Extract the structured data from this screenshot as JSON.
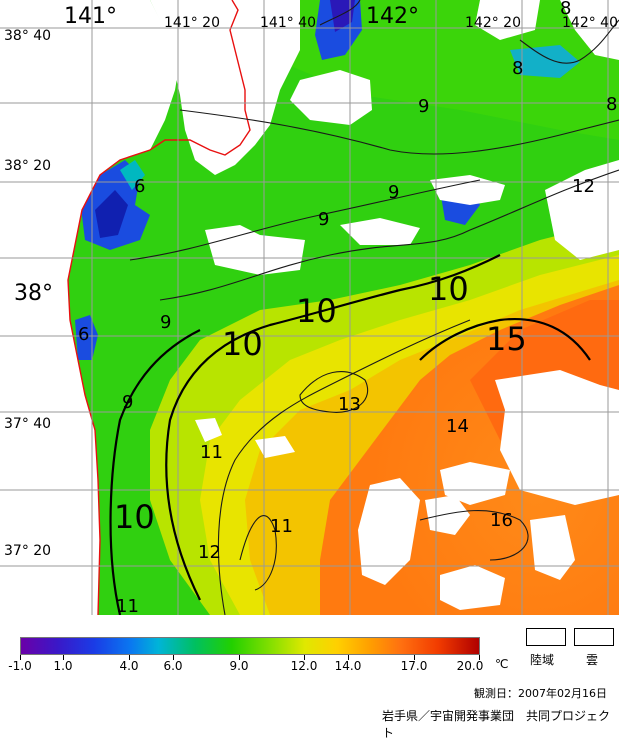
{
  "map": {
    "lon_labels": [
      {
        "text": "141°",
        "size": 22
      },
      {
        "text": "141° 20",
        "size": 14
      },
      {
        "text": "141° 40",
        "size": 14
      },
      {
        "text": "142°",
        "size": 22
      },
      {
        "text": "142° 20",
        "size": 14
      },
      {
        "text": "142° 40",
        "size": 14
      }
    ],
    "lat_labels": [
      {
        "text": "38° 40",
        "size": 14
      },
      {
        "text": "38° 20",
        "size": 14
      },
      {
        "text": "38°",
        "size": 22
      },
      {
        "text": "37° 40",
        "size": 14
      },
      {
        "text": "37° 20",
        "size": 14
      }
    ],
    "contour_labels": [
      {
        "text": "9",
        "size": 18
      },
      {
        "text": "9",
        "size": 18
      },
      {
        "text": "9",
        "size": 18
      },
      {
        "text": "9",
        "size": 18
      },
      {
        "text": "9",
        "size": 18
      },
      {
        "text": "8",
        "size": 18
      },
      {
        "text": "8",
        "size": 18
      },
      {
        "text": "8",
        "size": 18
      },
      {
        "text": "6",
        "size": 18
      },
      {
        "text": "6",
        "size": 18
      },
      {
        "text": "10",
        "size": 32
      },
      {
        "text": "10",
        "size": 32
      },
      {
        "text": "10",
        "size": 32
      },
      {
        "text": "10",
        "size": 32
      },
      {
        "text": "12",
        "size": 18
      },
      {
        "text": "15",
        "size": 32
      },
      {
        "text": "13",
        "size": 18
      },
      {
        "text": "14",
        "size": 18
      },
      {
        "text": "11",
        "size": 18
      },
      {
        "text": "11",
        "size": 18
      },
      {
        "text": "12",
        "size": 18
      },
      {
        "text": "11",
        "size": 18
      },
      {
        "text": "16",
        "size": 18
      }
    ]
  },
  "legend": {
    "colorbar_min": -1.0,
    "colorbar_max": 20.0,
    "ticks": [
      "-1.0",
      "1.0",
      "4.0",
      "6.0",
      "9.0",
      "12.0",
      "14.0",
      "17.0",
      "20.0"
    ],
    "unit": "℃",
    "land_label": "陸域",
    "cloud_label": "雲",
    "colors": [
      "#6a00a8",
      "#1a3ce6",
      "#00c060",
      "#22d000",
      "#e0e800",
      "#ff7010",
      "#b00000"
    ]
  },
  "footer": {
    "date": "観測日：2007年02月16日",
    "credit": "岩手県／宇宙開発事業団　共同プロジェクト"
  }
}
